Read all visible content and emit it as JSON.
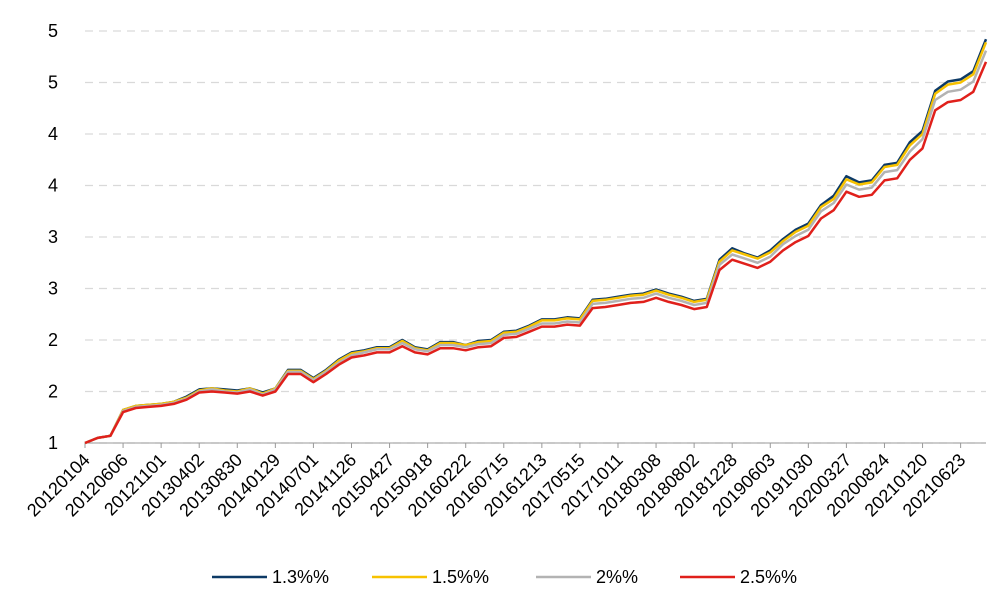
{
  "chart_data": {
    "type": "line",
    "categories": [
      "20120104",
      null,
      null,
      "20120606",
      null,
      null,
      "20121101",
      null,
      null,
      "20130402",
      null,
      null,
      "20130830",
      null,
      null,
      "20140129",
      null,
      null,
      "20140701",
      null,
      null,
      "20141126",
      null,
      null,
      "20150427",
      null,
      null,
      "20150918",
      null,
      null,
      "20160222",
      null,
      null,
      "20160715",
      null,
      null,
      "20161213",
      null,
      null,
      "20170515",
      null,
      null,
      "20171011",
      null,
      null,
      "20180308",
      null,
      null,
      "20180802",
      null,
      null,
      "20181228",
      null,
      null,
      "20190603",
      null,
      null,
      "20191030",
      null,
      null,
      "20200327",
      null,
      null,
      "20200824",
      null,
      null,
      "20210120",
      null,
      null,
      "20210623",
      null,
      null
    ],
    "series": [
      {
        "name": "1.3%%",
        "color": "#0d3a66",
        "values": [
          1.0,
          1.05,
          1.07,
          1.32,
          1.36,
          1.37,
          1.38,
          1.4,
          1.45,
          1.52,
          1.53,
          1.52,
          1.51,
          1.53,
          1.49,
          1.53,
          1.71,
          1.71,
          1.63,
          1.71,
          1.81,
          1.88,
          1.9,
          1.93,
          1.93,
          2.0,
          1.93,
          1.91,
          1.98,
          1.98,
          1.95,
          1.99,
          2.0,
          2.08,
          2.09,
          2.14,
          2.2,
          2.2,
          2.22,
          2.21,
          2.39,
          2.4,
          2.42,
          2.44,
          2.45,
          2.49,
          2.45,
          2.42,
          2.38,
          2.4,
          2.78,
          2.89,
          2.84,
          2.8,
          2.87,
          2.98,
          3.07,
          3.13,
          3.31,
          3.4,
          3.59,
          3.53,
          3.55,
          3.7,
          3.72,
          3.92,
          4.03,
          4.42,
          4.51,
          4.53,
          4.61,
          4.92
        ]
      },
      {
        "name": "1.5%%",
        "color": "#f7c200",
        "values": [
          1.0,
          1.05,
          1.07,
          1.32,
          1.36,
          1.37,
          1.38,
          1.4,
          1.44,
          1.51,
          1.53,
          1.51,
          1.5,
          1.53,
          1.48,
          1.53,
          1.7,
          1.7,
          1.62,
          1.7,
          1.8,
          1.87,
          1.89,
          1.92,
          1.92,
          1.99,
          1.92,
          1.9,
          1.97,
          1.97,
          1.95,
          1.98,
          1.99,
          2.07,
          2.08,
          2.13,
          2.19,
          2.19,
          2.21,
          2.2,
          2.38,
          2.39,
          2.41,
          2.43,
          2.44,
          2.48,
          2.44,
          2.41,
          2.37,
          2.39,
          2.76,
          2.87,
          2.83,
          2.79,
          2.85,
          2.96,
          3.05,
          3.11,
          3.29,
          3.37,
          3.56,
          3.51,
          3.53,
          3.68,
          3.7,
          3.89,
          4.0,
          4.39,
          4.48,
          4.5,
          4.58,
          4.89
        ]
      },
      {
        "name": "2%%",
        "color": "#b3b3b3",
        "values": [
          1.0,
          1.05,
          1.07,
          1.31,
          1.35,
          1.36,
          1.37,
          1.39,
          1.43,
          1.5,
          1.52,
          1.5,
          1.49,
          1.52,
          1.47,
          1.52,
          1.69,
          1.69,
          1.61,
          1.69,
          1.78,
          1.85,
          1.88,
          1.91,
          1.91,
          1.97,
          1.91,
          1.89,
          1.95,
          1.95,
          1.93,
          1.96,
          1.97,
          2.05,
          2.06,
          2.11,
          2.16,
          2.16,
          2.18,
          2.17,
          2.35,
          2.36,
          2.38,
          2.4,
          2.41,
          2.45,
          2.41,
          2.38,
          2.34,
          2.36,
          2.73,
          2.83,
          2.79,
          2.75,
          2.81,
          2.93,
          3.01,
          3.07,
          3.25,
          3.33,
          3.51,
          3.46,
          3.48,
          3.63,
          3.65,
          3.83,
          3.95,
          4.33,
          4.41,
          4.43,
          4.51,
          4.81
        ]
      },
      {
        "name": "2.5%%",
        "color": "#e0201b",
        "values": [
          1.0,
          1.05,
          1.07,
          1.3,
          1.34,
          1.35,
          1.36,
          1.38,
          1.42,
          1.49,
          1.5,
          1.49,
          1.48,
          1.5,
          1.46,
          1.5,
          1.67,
          1.67,
          1.59,
          1.67,
          1.76,
          1.83,
          1.85,
          1.88,
          1.88,
          1.94,
          1.88,
          1.86,
          1.92,
          1.92,
          1.9,
          1.93,
          1.94,
          2.02,
          2.03,
          2.08,
          2.13,
          2.13,
          2.15,
          2.14,
          2.31,
          2.32,
          2.34,
          2.36,
          2.37,
          2.41,
          2.37,
          2.34,
          2.3,
          2.32,
          2.68,
          2.78,
          2.74,
          2.7,
          2.76,
          2.87,
          2.95,
          3.01,
          3.18,
          3.26,
          3.44,
          3.39,
          3.41,
          3.55,
          3.57,
          3.75,
          3.86,
          4.23,
          4.31,
          4.33,
          4.41,
          4.7
        ]
      }
    ],
    "ylim": [
      1,
      5
    ],
    "yticks": [
      1,
      {
        "value": 1.5,
        "label": "2"
      },
      2,
      {
        "value": 2.5,
        "label": "3"
      },
      3,
      {
        "value": 3.5,
        "label": "4"
      },
      4,
      {
        "value": 4.5,
        "label": "5"
      },
      5
    ],
    "grid": true,
    "legend": "bottom"
  }
}
